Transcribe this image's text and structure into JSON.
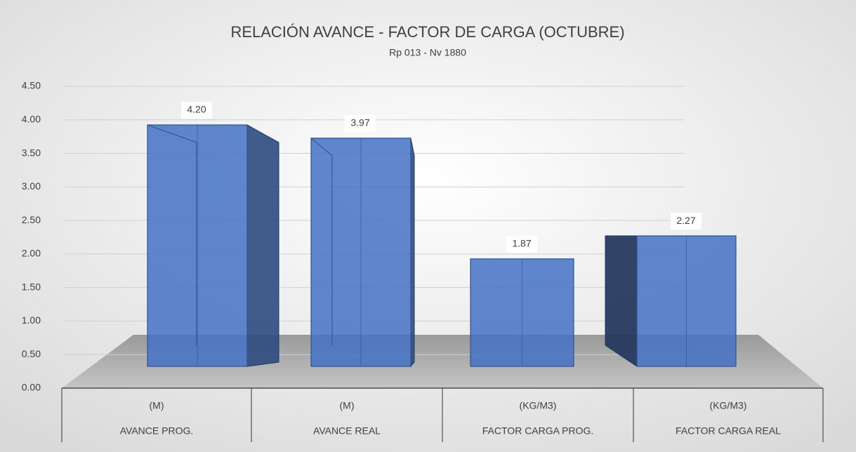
{
  "chart_data": {
    "type": "bar3d",
    "title": "RELACIÓN AVANCE - FACTOR DE CARGA (OCTUBRE)",
    "subtitle": "Rp 013 - Nv 1880",
    "categories": [
      "AVANCE PROG.",
      "AVANCE REAL",
      "FACTOR CARGA PROG.",
      "FACTOR CARGA REAL"
    ],
    "units": [
      "(M)",
      "(M)",
      "(KG/M3)",
      "(KG/M3)"
    ],
    "values": [
      4.2,
      3.97,
      1.87,
      2.27
    ],
    "value_labels": [
      "4.20",
      "3.97",
      "1.87",
      "2.27"
    ],
    "color": "#4472c4",
    "ylim": [
      0,
      4.5
    ],
    "yticks": [
      {
        "value": 0,
        "label": "0.00"
      },
      {
        "value": 0.5,
        "label": "0.50"
      },
      {
        "value": 1,
        "label": "1.00"
      },
      {
        "value": 1.5,
        "label": "1.50"
      },
      {
        "value": 2,
        "label": "2.00"
      },
      {
        "value": 2.5,
        "label": "2.50"
      },
      {
        "value": 3,
        "label": "3.00"
      },
      {
        "value": 3.5,
        "label": "3.50"
      },
      {
        "value": 4,
        "label": "4.00"
      },
      {
        "value": 4.5,
        "label": "4.50"
      }
    ],
    "grid": true
  }
}
